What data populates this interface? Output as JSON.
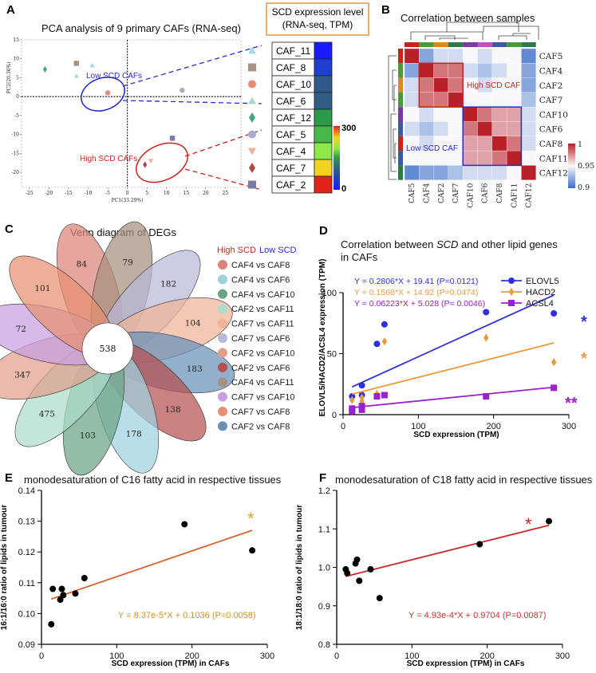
{
  "panels": {
    "A": {
      "label": "A",
      "title": "PCA analysis of 9 primary CAFs (RNA-seq)",
      "legend_title_line1": "SCD expression level",
      "legend_title_line2": "(RNA-seq, TPM)",
      "colorbar_max": "300",
      "colorbar_min": "0",
      "low_group_label": "Low SCD CAFs",
      "high_group_label": "High SCD CAFs",
      "legend_rows": [
        {
          "name": "CAF_11",
          "shape": "triangle",
          "color": "#a6d9e6",
          "fill": "#1a1aff"
        },
        {
          "name": "CAF_8",
          "shape": "square",
          "color": "#a89281",
          "fill": "#1f3fcf"
        },
        {
          "name": "CAF_10",
          "shape": "circle",
          "color": "#e8897a",
          "fill": "#305a8a"
        },
        {
          "name": "CAF_6",
          "shape": "triangle",
          "color": "#a8dcc8",
          "fill": "#2f5d86"
        },
        {
          "name": "CAF_12",
          "shape": "diamond",
          "color": "#4aa37e",
          "fill": "#2b9a4a"
        },
        {
          "name": "CAF_5",
          "shape": "circle",
          "color": "#aaaad0",
          "fill": "#45b845"
        },
        {
          "name": "CAF_4",
          "shape": "triangle-down",
          "color": "#efb195",
          "fill": "#8fe84a"
        },
        {
          "name": "CAF_7",
          "shape": "diamond",
          "color": "#b04848",
          "fill": "#f2d323"
        },
        {
          "name": "CAF_2",
          "shape": "square",
          "color": "#7c7ca6",
          "fill": "#e2231a"
        }
      ]
    },
    "B": {
      "label": "B",
      "title": "Correlation between samples",
      "samples": [
        "CAF5",
        "CAF4",
        "CAF2",
        "CAF7",
        "CAF10",
        "CAF6",
        "CAF8",
        "CAF11",
        "CAF12"
      ],
      "high_label": "High SCD CAF",
      "low_label": "Low SCD CAF",
      "scale_ticks": [
        "1",
        "0.95",
        "0.9"
      ]
    },
    "C": {
      "label": "C",
      "title": "Venn diagram of DEGs",
      "legend_high": "High SCD",
      "legend_low": "Low SCD",
      "center_value": "538",
      "comparisons": [
        {
          "name": "CAF4 vs CAF8",
          "color": "#d98478"
        },
        {
          "name": "CAF4 vs CAF6",
          "color": "#9fd1de"
        },
        {
          "name": "CAF4 vs CAF10",
          "color": "#6aa384"
        },
        {
          "name": "CAF2 vs CAF11",
          "color": "#acdcca"
        },
        {
          "name": "CAF7 vs CAF11",
          "color": "#f1b39a"
        },
        {
          "name": "CAF7 vs CAF6",
          "color": "#b8b8d8"
        },
        {
          "name": "CAF2 vs CAF10",
          "color": "#e2a08c"
        },
        {
          "name": "CAF2 vs CAF6",
          "color": "#b55050"
        },
        {
          "name": "CAF4 vs CAF11",
          "color": "#a69080"
        },
        {
          "name": "CAF7 vs CAF10",
          "color": "#c8a0e0"
        },
        {
          "name": "CAF7 vs CAF8",
          "color": "#e69070"
        },
        {
          "name": "CAF2 vs CAF8",
          "color": "#6890b8"
        }
      ]
    },
    "D": {
      "label": "D"
    },
    "E": {
      "label": "E"
    },
    "F": {
      "label": "F"
    }
  },
  "chart_data": [
    {
      "panel": "A",
      "type": "scatter",
      "title": "PCA analysis of 9 primary CAFs (RNA-seq)",
      "xlabel": "PC1(33.29%)",
      "ylabel": "PC2(20.36%)",
      "xlim": [
        -27,
        29
      ],
      "ylim": [
        -24,
        15
      ],
      "xticks": [
        -25,
        -20,
        -15,
        -10,
        -5,
        0,
        5,
        10,
        15,
        20,
        25
      ],
      "yticks": [
        15,
        10,
        5,
        0,
        -5,
        -10,
        -15,
        -20
      ],
      "points": [
        {
          "name": "CAF_12",
          "x": -21,
          "y": 7.2,
          "shape": "diamond",
          "color": "#4aa37e"
        },
        {
          "name": "CAF_8",
          "x": -13,
          "y": 8.8,
          "shape": "square",
          "color": "#a89281"
        },
        {
          "name": "CAF_6",
          "x": -13,
          "y": 5.5,
          "shape": "triangle",
          "color": "#a8dcc8"
        },
        {
          "name": "CAF_11",
          "x": -9,
          "y": 8.3,
          "shape": "triangle",
          "color": "#a6d9e6"
        },
        {
          "name": "CAF_10",
          "x": -5,
          "y": 1.0,
          "shape": "circle",
          "color": "#e8897a"
        },
        {
          "name": "CAF_5",
          "x": 14,
          "y": 1.7,
          "shape": "circle",
          "color": "#aaaad0"
        },
        {
          "name": "CAF_2",
          "x": 11.5,
          "y": -11,
          "shape": "square",
          "color": "#7c7ca6"
        },
        {
          "name": "CAF_4",
          "x": 6,
          "y": -17,
          "shape": "triangle-down",
          "color": "#efb195"
        },
        {
          "name": "CAF_7",
          "x": 4.5,
          "y": -18,
          "shape": "diamond",
          "color": "#b04848"
        }
      ]
    },
    {
      "panel": "B",
      "type": "heatmap",
      "title": "Correlation between samples",
      "rows": [
        "CAF5",
        "CAF4",
        "CAF2",
        "CAF7",
        "CAF10",
        "CAF6",
        "CAF8",
        "CAF11",
        "CAF12"
      ],
      "cols": [
        "CAF5",
        "CAF4",
        "CAF2",
        "CAF7",
        "CAF10",
        "CAF6",
        "CAF8",
        "CAF11",
        "CAF12"
      ],
      "range": [
        0.9,
        1.0
      ],
      "values": [
        [
          1.0,
          0.92,
          0.94,
          0.94,
          0.95,
          0.94,
          0.95,
          0.95,
          0.91
        ],
        [
          0.92,
          1.0,
          0.98,
          0.98,
          0.94,
          0.93,
          0.94,
          0.95,
          0.92
        ],
        [
          0.94,
          0.98,
          1.0,
          0.98,
          0.95,
          0.94,
          0.95,
          0.95,
          0.92
        ],
        [
          0.94,
          0.98,
          0.98,
          1.0,
          0.95,
          0.95,
          0.95,
          0.95,
          0.93
        ],
        [
          0.95,
          0.94,
          0.95,
          0.95,
          1.0,
          0.98,
          0.97,
          0.97,
          0.94
        ],
        [
          0.94,
          0.93,
          0.94,
          0.95,
          0.98,
          1.0,
          0.97,
          0.97,
          0.94
        ],
        [
          0.95,
          0.94,
          0.95,
          0.95,
          0.97,
          0.97,
          1.0,
          0.98,
          0.94
        ],
        [
          0.95,
          0.95,
          0.95,
          0.95,
          0.97,
          0.97,
          0.98,
          1.0,
          0.95
        ],
        [
          0.91,
          0.92,
          0.92,
          0.93,
          0.94,
          0.94,
          0.94,
          0.95,
          1.0
        ]
      ]
    },
    {
      "panel": "C",
      "type": "venn",
      "title": "Venn diagram of DEGs",
      "center": 538,
      "unique_counts": [
        84,
        79,
        182,
        104,
        183,
        138,
        178,
        103,
        475,
        347,
        72,
        101
      ]
    },
    {
      "panel": "D",
      "type": "scatter",
      "title_prefix": "Correlation between ",
      "title_em": "SCD",
      "title_suffix": " and other lipid genes",
      "title_line2": "in CAFs",
      "xlabel": "SCD expression (TPM)",
      "ylabel": "ELOVL5/HACD2/ACSL4  expression (TPM)",
      "xlim": [
        0,
        300
      ],
      "ylim": [
        0,
        100
      ],
      "xticks": [
        0,
        100,
        200,
        300
      ],
      "yticks": [
        0,
        50,
        100
      ],
      "series": [
        {
          "name": "ELOVL5",
          "color": "#2f2fe0",
          "marker": "circle",
          "equation": "Y = 0.2806*X + 19.41 (P=0.0121)",
          "slope": 0.2806,
          "intercept": 19.41,
          "sig": "*",
          "x": [
            12,
            12,
            25,
            25,
            45,
            55,
            190,
            280
          ],
          "y": [
            15,
            5,
            24,
            16,
            58,
            74,
            84,
            83
          ]
        },
        {
          "name": "HACD2",
          "color": "#e89a40",
          "marker": "diamond",
          "equation": "Y = 0.1568*X + 14.92 (P=0.0474)",
          "slope": 0.1568,
          "intercept": 14.92,
          "sig": "*",
          "x": [
            12,
            12,
            25,
            25,
            45,
            55,
            190,
            280
          ],
          "y": [
            12,
            3,
            14,
            11,
            17,
            60,
            63,
            43
          ]
        },
        {
          "name": "ACSL4",
          "color": "#9a20d0",
          "marker": "square",
          "equation": "Y = 0.06223*X + 5.028 (P= 0.0046)",
          "slope": 0.06223,
          "intercept": 5.028,
          "sig": "**",
          "x": [
            12,
            12,
            25,
            25,
            45,
            55,
            190,
            280
          ],
          "y": [
            5,
            3,
            7,
            4,
            15,
            16,
            15,
            22
          ]
        }
      ]
    },
    {
      "panel": "E",
      "type": "scatter",
      "title": "monodesaturation of C16 fatty acid in respective tissues",
      "xlabel": "SCD expression (TPM) in CAFs",
      "ylabel": "16:1/16:0 ratio of lipids in tumour",
      "xlim": [
        0,
        300
      ],
      "ylim": [
        0.09,
        0.14
      ],
      "xticks": [
        0,
        100,
        200,
        300
      ],
      "yticks": [
        0.09,
        0.1,
        0.11,
        0.12,
        0.13,
        0.14
      ],
      "ytick_labels": [
        "0.09",
        "0.10",
        "0.11",
        "0.12",
        "0.13",
        "0.14"
      ],
      "x": [
        13,
        15,
        25,
        27,
        29,
        45,
        57,
        190,
        280
      ],
      "y": [
        0.0965,
        0.108,
        0.1045,
        0.108,
        0.106,
        0.1065,
        0.1115,
        0.129,
        0.1205
      ],
      "fit": {
        "slope": 8.37e-05,
        "intercept": 0.1036,
        "color": "#d8602a"
      },
      "equation": "Y = 8.37e-5*X + 0.1036 (P=0.0058)",
      "equation_color": "#d89020",
      "sig": "*",
      "sig_color": "#d8a030"
    },
    {
      "panel": "F",
      "type": "scatter",
      "title": "monodesaturation of C18 fatty acid in respective tissues",
      "xlabel": "SCD expression (TPM) in CAFs",
      "ylabel": "18:1/18:0 ratio of lipids in tumour",
      "xlim": [
        0,
        300
      ],
      "ylim": [
        0.8,
        1.2
      ],
      "xticks": [
        0,
        100,
        200,
        300
      ],
      "yticks": [
        0.8,
        0.9,
        1.0,
        1.1,
        1.2
      ],
      "ytick_labels": [
        "0.8",
        "0.9",
        "1.0",
        "1.1",
        "1.2"
      ],
      "x": [
        12,
        14,
        25,
        27,
        30,
        45,
        57,
        190,
        282
      ],
      "y": [
        0.995,
        0.985,
        1.01,
        1.02,
        0.965,
        0.995,
        0.92,
        1.06,
        1.12
      ],
      "fit": {
        "slope": 0.000493,
        "intercept": 0.9704,
        "color": "#c82a2a"
      },
      "equation": "Y = 4.93e-4*X + 0.9704 (P=0.0087)",
      "equation_color": "#d03030",
      "sig": "*",
      "sig_color": "#d02020"
    }
  ]
}
